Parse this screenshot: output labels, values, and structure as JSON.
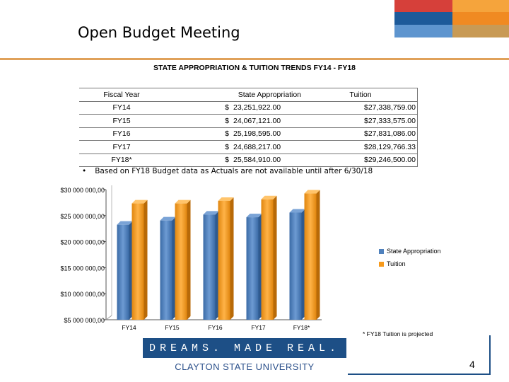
{
  "slide": {
    "title": "Open Budget Meeting",
    "subtitle": "STATE APPROPRIATION & TUITION TRENDS FY14 - FY18",
    "page_number": "4"
  },
  "table": {
    "headers": [
      "Fiscal Year",
      "State Appropriation",
      "Tuition"
    ],
    "rows": [
      {
        "year": "FY14",
        "dollar": "$",
        "state": "23,251,922.00",
        "tuition": "$27,338,759.00"
      },
      {
        "year": "FY15",
        "dollar": "$",
        "state": "24,067,121.00",
        "tuition": "$27,333,575.00"
      },
      {
        "year": "FY16",
        "dollar": "$",
        "state": "25,198,595.00",
        "tuition": "$27,831,086.00"
      },
      {
        "year": "FY17",
        "dollar": "$",
        "state": "24,688,217.00",
        "tuition": "$28,129,766.33"
      },
      {
        "year": "FY18*",
        "dollar": "$",
        "state": "25,584,910.00",
        "tuition": "$29,246,500.00"
      }
    ]
  },
  "note": {
    "bullet": "•",
    "text": "Based on FY18 Budget data as Actuals are not available until after 6/30/18"
  },
  "chart_data": {
    "type": "bar",
    "categories": [
      "FY14",
      "FY15",
      "FY16",
      "FY17",
      "FY18*"
    ],
    "series": [
      {
        "name": "State Appropriation",
        "values": [
          23251922,
          24067121,
          25198595,
          24688217,
          25584910
        ],
        "color": "#4f81bd"
      },
      {
        "name": "Tuition",
        "values": [
          27338759,
          27333575,
          27831086,
          28129766.33,
          29246500
        ],
        "color": "#f79a1c"
      }
    ],
    "ylim": [
      5000000,
      30000000
    ],
    "yticks": [
      30000000,
      25000000,
      20000000,
      15000000,
      10000000,
      5000000
    ],
    "ytick_labels": [
      "$30 000 000,00",
      "$25 000 000,00",
      "$20 000 000,00",
      "$15 000 000,00",
      "$10 000 000,00",
      "$5 000 000,00"
    ],
    "legend_position": "right",
    "grid": false,
    "footnote": "* FY18 Tuition is projected"
  },
  "branding": {
    "tagline": "DREAMS.  MADE  REAL.",
    "university": "CLAYTON STATE UNIVERSITY"
  },
  "colors": {
    "accent_orange": "#f08a22",
    "accent_gold": "#e0a15a",
    "accent_red": "#d6403a",
    "accent_blue": "#1d5a9a",
    "accent_lightblue": "#5e95cf",
    "brand_navy": "#1d4f86"
  }
}
